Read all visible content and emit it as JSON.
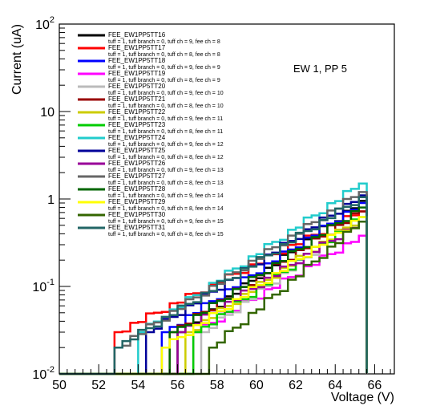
{
  "chart_data": {
    "type": "line",
    "step": true,
    "xlabel": "Voltage (V)",
    "ylabel": "Current (uA)",
    "xlim": [
      50,
      67
    ],
    "ylim": [
      0.01,
      100
    ],
    "ylog": true,
    "grid": false,
    "legend_position": "top-left",
    "annotation": "EW 1, PP 5",
    "x_ticks": [
      "50",
      "52",
      "54",
      "56",
      "58",
      "60",
      "62",
      "64",
      "66"
    ],
    "y_ticks": [
      {
        "value": 0.01,
        "base": "10",
        "exp": "-2"
      },
      {
        "value": 0.1,
        "base": "10",
        "exp": "-1"
      },
      {
        "value": 1,
        "text": "1"
      },
      {
        "value": 10,
        "text": "10"
      },
      {
        "value": 100,
        "base": "10",
        "exp": "2"
      }
    ],
    "floor": 0.01,
    "step_width": 0.4,
    "end_x": 65.6,
    "series": [
      {
        "name": "FEE_EW1PP5TT16",
        "desc": "tuff = 1, tuff branch = 0, tuff ch = 9, fee ch = 8",
        "color": "#000000",
        "width": 2.5,
        "start": 56.0,
        "y0": 0.03,
        "y1": 0.95
      },
      {
        "name": "FEE_EW1PP5TT17",
        "desc": "tuff = 1, tuff branch = 0, tuff ch = 8, fee ch = 8",
        "color": "#ff0000",
        "width": 2.5,
        "start": 52.8,
        "y0": 0.03,
        "y1": 0.72
      },
      {
        "name": "FEE_EW1PP5TT18",
        "desc": "tuff = 1, tuff branch = 0, tuff ch = 9, fee ch = 9",
        "color": "#0000ff",
        "width": 2.5,
        "start": 55.2,
        "y0": 0.03,
        "y1": 0.9
      },
      {
        "name": "FEE_EW1PP5TT19",
        "desc": "tuff = 1, tuff branch = 0, tuff ch = 8, fee ch = 9",
        "color": "#ff00ff",
        "width": 2.5,
        "start": 56.8,
        "y0": 0.03,
        "y1": 0.38
      },
      {
        "name": "FEE_EW1PP5TT20",
        "desc": "tuff = 1, tuff branch = 0, tuff ch = 9, fee ch = 10",
        "color": "#bbbbbb",
        "width": 2.5,
        "start": 57.2,
        "y0": 0.03,
        "y1": 0.62
      },
      {
        "name": "FEE_EW1PP5TT21",
        "desc": "tuff = 1, tuff branch = 0, tuff ch = 8, fee ch = 10",
        "color": "#990000",
        "width": 2.5,
        "start": 55.6,
        "y0": 0.03,
        "y1": 0.72
      },
      {
        "name": "FEE_EW1PP5TT22",
        "desc": "tuff = 1, tuff branch = 0, tuff ch = 9, fee ch = 11",
        "color": "#cccc00",
        "width": 2.5,
        "start": 56.4,
        "y0": 0.03,
        "y1": 0.62
      },
      {
        "name": "FEE_EW1PP5TT23",
        "desc": "tuff = 1, tuff branch = 0, tuff ch = 8, fee ch = 11",
        "color": "#00cc00",
        "width": 2.5,
        "start": 56.8,
        "y0": 0.03,
        "y1": 0.62
      },
      {
        "name": "FEE_EW1PP5TT24",
        "desc": "tuff = 1, tuff branch = 0, tuff ch = 9, fee ch = 12",
        "color": "#22cccc",
        "width": 2.5,
        "start": 54.0,
        "y0": 0.03,
        "y1": 1.5
      },
      {
        "name": "FEE_EW1PP5TT25",
        "desc": "tuff = 1, tuff branch = 0, tuff ch = 8, fee ch = 12",
        "color": "#000099",
        "width": 2.5,
        "start": 54.4,
        "y0": 0.03,
        "y1": 1.1
      },
      {
        "name": "FEE_EW1PP5TT26",
        "desc": "tuff = 1, tuff branch = 0, tuff ch = 9, fee ch = 13",
        "color": "#990099",
        "width": 2.5,
        "start": 56.0,
        "y0": 0.03,
        "y1": 0.55
      },
      {
        "name": "FEE_EW1PP5TT27",
        "desc": "tuff = 1, tuff branch = 0, tuff ch = 8, fee ch = 13",
        "color": "#666666",
        "width": 2.5,
        "start": 52.8,
        "y0": 0.02,
        "y1": 1.2
      },
      {
        "name": "FEE_EW1PP5TT28",
        "desc": "tuff = 1, tuff branch = 0, tuff ch = 9, fee ch = 14",
        "color": "#006600",
        "width": 2.5,
        "start": 55.6,
        "y0": 0.03,
        "y1": 0.8
      },
      {
        "name": "FEE_EW1PP5TT29",
        "desc": "tuff = 1, tuff branch = 0, tuff ch = 8, fee ch = 14",
        "color": "#ffff00",
        "width": 2.5,
        "start": 55.2,
        "y0": 0.02,
        "y1": 0.62
      },
      {
        "name": "FEE_EW1PP5TT30",
        "desc": "tuff = 1, tuff branch = 0, tuff ch = 9, fee ch = 15",
        "color": "#336600",
        "width": 2.5,
        "start": 57.6,
        "y0": 0.02,
        "y1": 0.55
      },
      {
        "name": "FEE_EW1PP5TT31",
        "desc": "tuff = 1, tuff branch = 0, tuff ch = 8, fee ch = 15",
        "color": "#226666",
        "width": 2.5,
        "start": 52.8,
        "y0": 0.02,
        "y1": 1.05
      }
    ]
  }
}
